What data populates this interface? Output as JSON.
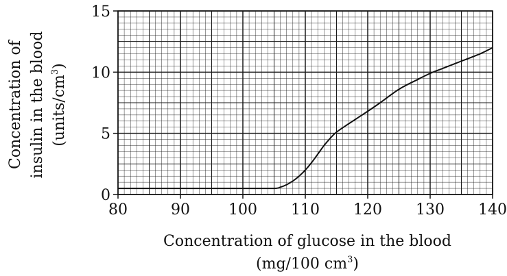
{
  "chart_data": {
    "type": "line",
    "title": "",
    "xlabel_line1": "Concentration of glucose in the blood",
    "xlabel_line2_pre": "(mg/100 cm",
    "xlabel_line2_sup": "3",
    "xlabel_line2_post": ")",
    "ylabel_line1": "Concentration of",
    "ylabel_line2": "insulin in the blood",
    "ylabel_line3_pre": "(units/cm",
    "ylabel_line3_sup": "3",
    "ylabel_line3_post": ")",
    "xlim": [
      80,
      140
    ],
    "ylim": [
      0,
      15
    ],
    "x_ticks": [
      80,
      90,
      100,
      110,
      120,
      130,
      140
    ],
    "y_ticks": [
      0,
      5,
      10,
      15
    ],
    "grid": {
      "minor_x_step": 1,
      "minor_y_step": 0.5,
      "medium_x_step": 5,
      "medium_y_step": 2.5,
      "major_x_step": 10,
      "major_y_step": 5
    },
    "series": [
      {
        "x": [
          80,
          85,
          90,
          95,
          100,
          105,
          106,
          107,
          108,
          109,
          110,
          111,
          112,
          113,
          114,
          115,
          117,
          120,
          122,
          125,
          128,
          130,
          132,
          135,
          138,
          140
        ],
        "y": [
          0.5,
          0.5,
          0.5,
          0.5,
          0.5,
          0.5,
          0.6,
          0.8,
          1.1,
          1.5,
          2.0,
          2.6,
          3.3,
          4.0,
          4.6,
          5.1,
          5.8,
          6.8,
          7.5,
          8.6,
          9.4,
          9.9,
          10.3,
          10.9,
          11.5,
          12.0
        ]
      }
    ],
    "colors": {
      "line": "#111111",
      "grid": "#1a1a1a"
    }
  }
}
